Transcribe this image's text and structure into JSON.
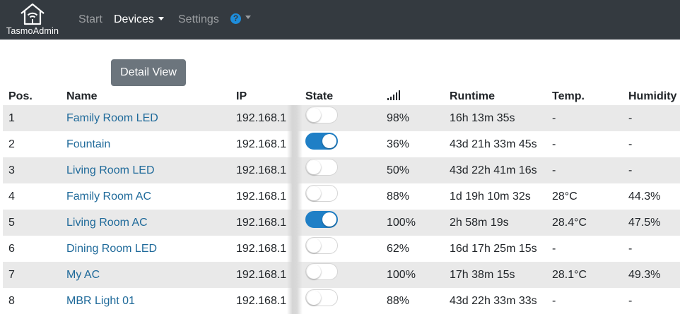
{
  "navbar": {
    "brand": "TasmoAdmin",
    "items": [
      {
        "label": "Start"
      },
      {
        "label": "Devices"
      },
      {
        "label": "Settings"
      }
    ],
    "help_icon": "question-circle-icon"
  },
  "toolbar": {
    "detail_view_label": "Detail View"
  },
  "table": {
    "headers": {
      "pos": "Pos.",
      "name": "Name",
      "ip": "IP",
      "state": "State",
      "signal_icon": "wifi-signal-icon",
      "runtime": "Runtime",
      "temp": "Temp.",
      "humidity": "Humidity"
    },
    "rows": [
      {
        "pos": "1",
        "name": "Family Room LED",
        "ip": "192.168.1",
        "state": "off",
        "signal": "98%",
        "runtime": "16h 13m 35s",
        "temp": "-",
        "humidity": "-"
      },
      {
        "pos": "2",
        "name": "Fountain",
        "ip": "192.168.1",
        "state": "on",
        "signal": "36%",
        "runtime": "43d 21h 33m 45s",
        "temp": "-",
        "humidity": "-"
      },
      {
        "pos": "3",
        "name": "Living Room LED",
        "ip": "192.168.1",
        "state": "off",
        "signal": "50%",
        "runtime": "43d 22h 41m 16s",
        "temp": "-",
        "humidity": "-"
      },
      {
        "pos": "4",
        "name": "Family Room AC",
        "ip": "192.168.1",
        "state": "off",
        "signal": "88%",
        "runtime": "1d 19h 10m 32s",
        "temp": "28°C",
        "humidity": "44.3%"
      },
      {
        "pos": "5",
        "name": "Living Room AC",
        "ip": "192.168.1",
        "state": "on",
        "signal": "100%",
        "runtime": "2h 58m 19s",
        "temp": "28.4°C",
        "humidity": "47.5%"
      },
      {
        "pos": "6",
        "name": "Dining Room LED",
        "ip": "192.168.1",
        "state": "off",
        "signal": "62%",
        "runtime": "16d 17h 25m 15s",
        "temp": "-",
        "humidity": "-"
      },
      {
        "pos": "7",
        "name": "My AC",
        "ip": "192.168.1",
        "state": "off",
        "signal": "100%",
        "runtime": "17h 38m 15s",
        "temp": "28.1°C",
        "humidity": "49.3%"
      },
      {
        "pos": "8",
        "name": "MBR Light 01",
        "ip": "192.168.1",
        "state": "off",
        "signal": "88%",
        "runtime": "43d 22h 33m 33s",
        "temp": "-",
        "humidity": "-"
      }
    ]
  },
  "colors": {
    "navbar_bg": "#343a40",
    "link": "#1f6a9a",
    "toggle_on": "#1f7fc6",
    "stripe": "#e9e9e9",
    "button_secondary": "#6c757d"
  }
}
